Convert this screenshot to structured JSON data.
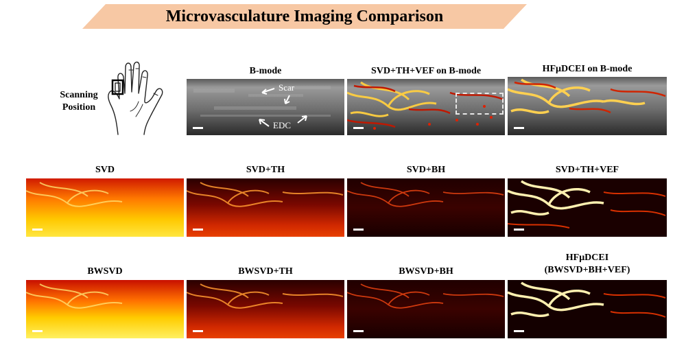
{
  "title": "Microvasculature Imaging Comparison",
  "colors": {
    "banner": "#f7c8a4",
    "hot_dark": "#1a0000",
    "hot_mid": "#c82000",
    "hot_bright": "#ffe680",
    "bmode_gray": "#6a6a6a"
  },
  "scanning": {
    "line1": "Scanning",
    "line2": "Position"
  },
  "top_row": {
    "bmode": {
      "label": "B-mode",
      "annotations": {
        "scar": "Scar",
        "edc": "EDC"
      }
    },
    "svd_overlay": {
      "label": "SVD+TH+VEF on B-mode"
    },
    "hf_overlay": {
      "label": "HFμDCEI on B-mode"
    }
  },
  "middle_row": {
    "svd": "SVD",
    "svd_th": "SVD+TH",
    "svd_bh": "SVD+BH",
    "svd_th_vef": "SVD+TH+VEF"
  },
  "bottom_row": {
    "bwsvd": "BWSVD",
    "bwsvd_th": "BWSVD+TH",
    "bwsvd_bh": "BWSVD+BH",
    "hf_line1": "HFμDCEI",
    "hf_line2": "(BWSVD+BH+VEF)"
  }
}
